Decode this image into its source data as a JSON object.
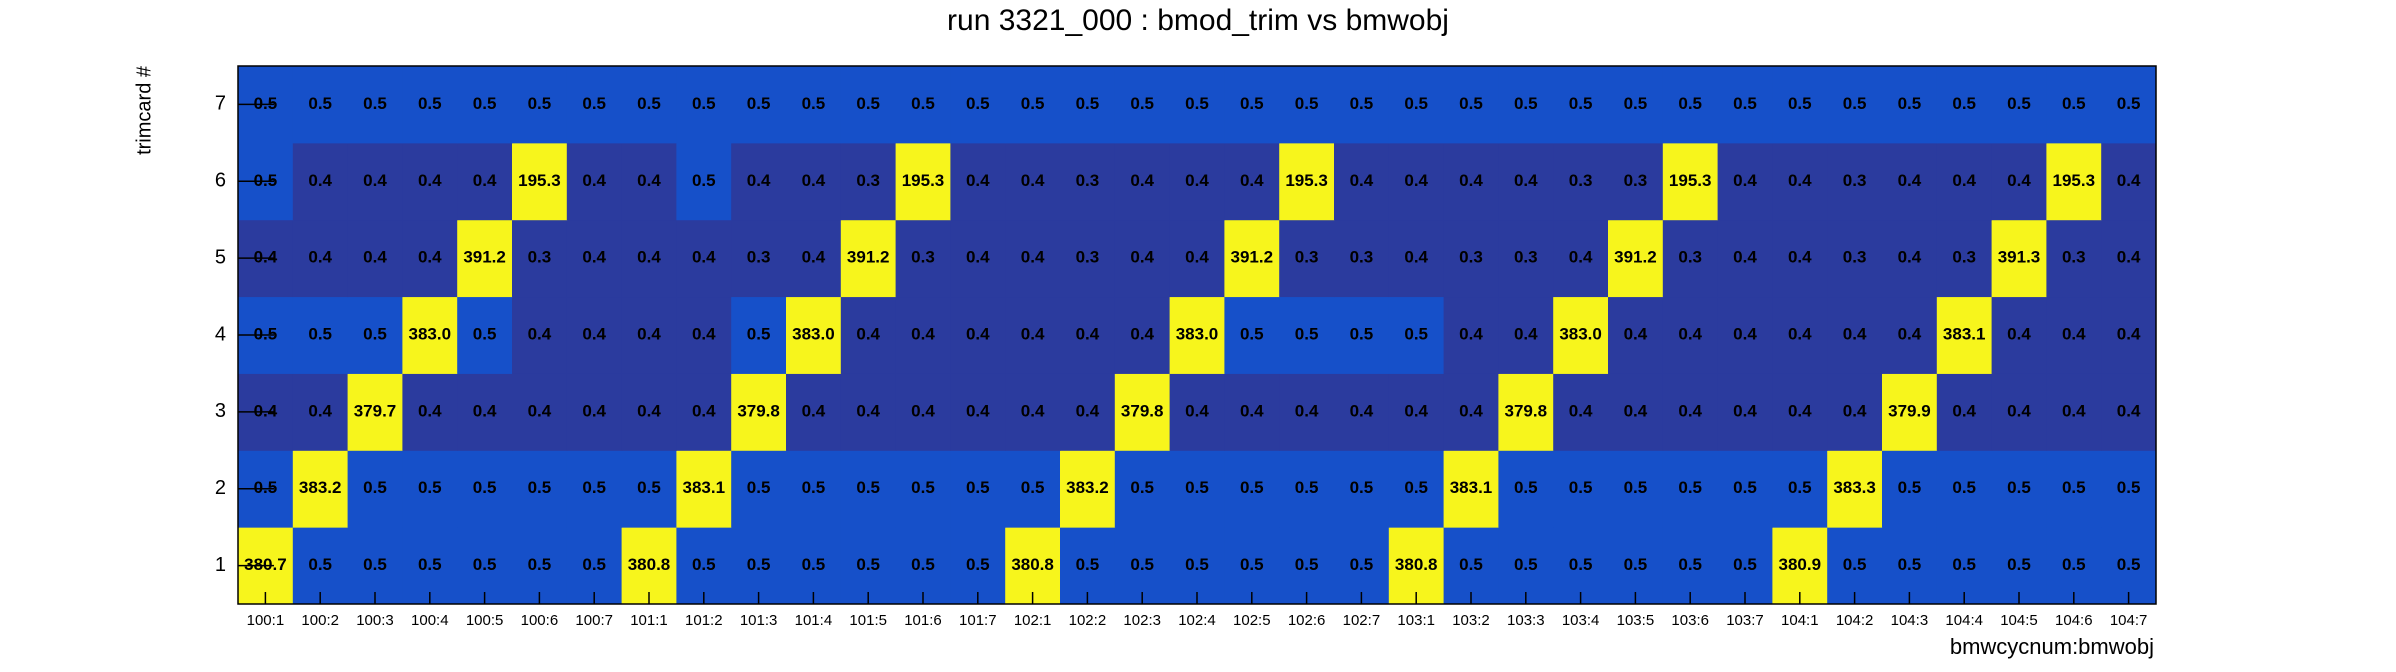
{
  "chart_data": {
    "type": "heatmap",
    "title": "run 3321_000 : bmod_trim vs bmwobj",
    "x_label": "bmwcycnum:bmwobj",
    "y_label": "trimcard #",
    "categories": [
      "100:1",
      "100:2",
      "100:3",
      "100:4",
      "100:5",
      "100:6",
      "100:7",
      "101:1",
      "101:2",
      "101:3",
      "101:4",
      "101:5",
      "101:6",
      "101:7",
      "102:1",
      "102:2",
      "102:3",
      "102:4",
      "102:5",
      "102:6",
      "102:7",
      "103:1",
      "103:2",
      "103:3",
      "103:4",
      "103:5",
      "103:6",
      "103:7",
      "104:1",
      "104:2",
      "104:3",
      "104:4",
      "104:5",
      "104:6",
      "104:7"
    ],
    "y_categories": [
      "1",
      "2",
      "3",
      "4",
      "5",
      "6",
      "7"
    ],
    "values": [
      [
        380.7,
        0.5,
        0.5,
        0.5,
        0.5,
        0.5,
        0.5,
        380.8,
        0.5,
        0.5,
        0.5,
        0.5,
        0.5,
        0.5,
        380.8,
        0.5,
        0.5,
        0.5,
        0.5,
        0.5,
        0.5,
        380.8,
        0.5,
        0.5,
        0.5,
        0.5,
        0.5,
        0.5,
        380.9,
        0.5,
        0.5,
        0.5,
        0.5,
        0.5,
        0.5
      ],
      [
        0.5,
        383.2,
        0.5,
        0.5,
        0.5,
        0.5,
        0.5,
        0.5,
        383.1,
        0.5,
        0.5,
        0.5,
        0.5,
        0.5,
        0.5,
        383.2,
        0.5,
        0.5,
        0.5,
        0.5,
        0.5,
        0.5,
        383.1,
        0.5,
        0.5,
        0.5,
        0.5,
        0.5,
        0.5,
        383.3,
        0.5,
        0.5,
        0.5,
        0.5,
        0.5
      ],
      [
        0.4,
        0.4,
        379.7,
        0.4,
        0.4,
        0.4,
        0.4,
        0.4,
        0.4,
        379.8,
        0.4,
        0.4,
        0.4,
        0.4,
        0.4,
        0.4,
        379.8,
        0.4,
        0.4,
        0.4,
        0.4,
        0.4,
        0.4,
        379.8,
        0.4,
        0.4,
        0.4,
        0.4,
        0.4,
        0.4,
        379.9,
        0.4,
        0.4,
        0.4,
        0.4
      ],
      [
        0.5,
        0.5,
        0.5,
        383.0,
        0.5,
        0.4,
        0.4,
        0.4,
        0.4,
        0.5,
        383.0,
        0.4,
        0.4,
        0.4,
        0.4,
        0.4,
        0.4,
        383.0,
        0.5,
        0.5,
        0.5,
        0.5,
        0.4,
        0.4,
        383.0,
        0.4,
        0.4,
        0.4,
        0.4,
        0.4,
        0.4,
        383.1,
        0.4,
        0.4,
        0.4
      ],
      [
        0.4,
        0.4,
        0.4,
        0.4,
        391.2,
        0.3,
        0.4,
        0.4,
        0.4,
        0.3,
        0.4,
        391.2,
        0.3,
        0.4,
        0.4,
        0.3,
        0.4,
        0.4,
        391.2,
        0.3,
        0.3,
        0.4,
        0.3,
        0.3,
        0.4,
        391.2,
        0.3,
        0.4,
        0.4,
        0.3,
        0.4,
        0.3,
        391.3,
        0.3,
        0.4
      ],
      [
        0.5,
        0.4,
        0.4,
        0.4,
        0.4,
        195.3,
        0.4,
        0.4,
        0.5,
        0.4,
        0.4,
        0.3,
        195.3,
        0.4,
        0.4,
        0.3,
        0.4,
        0.4,
        0.4,
        195.3,
        0.4,
        0.4,
        0.4,
        0.4,
        0.3,
        0.3,
        195.3,
        0.4,
        0.4,
        0.3,
        0.4,
        0.4,
        0.4,
        195.3,
        0.4
      ],
      [
        0.5,
        0.5,
        0.5,
        0.5,
        0.5,
        0.5,
        0.5,
        0.5,
        0.5,
        0.5,
        0.5,
        0.5,
        0.5,
        0.5,
        0.5,
        0.5,
        0.5,
        0.5,
        0.5,
        0.5,
        0.5,
        0.5,
        0.5,
        0.5,
        0.5,
        0.5,
        0.5,
        0.5,
        0.5,
        0.5,
        0.5,
        0.5,
        0.5,
        0.5,
        0.5
      ]
    ],
    "value_labels": [
      [
        "380.7",
        "0.5",
        "0.5",
        "0.5",
        "0.5",
        "0.5",
        "0.5",
        "380.8",
        "0.5",
        "0.5",
        "0.5",
        "0.5",
        "0.5",
        "0.5",
        "380.8",
        "0.5",
        "0.5",
        "0.5",
        "0.5",
        "0.5",
        "0.5",
        "380.8",
        "0.5",
        "0.5",
        "0.5",
        "0.5",
        "0.5",
        "0.5",
        "380.9",
        "0.5",
        "0.5",
        "0.5",
        "0.5",
        "0.5",
        "0.5"
      ],
      [
        "0.5",
        "383.2",
        "0.5",
        "0.5",
        "0.5",
        "0.5",
        "0.5",
        "0.5",
        "383.1",
        "0.5",
        "0.5",
        "0.5",
        "0.5",
        "0.5",
        "0.5",
        "383.2",
        "0.5",
        "0.5",
        "0.5",
        "0.5",
        "0.5",
        "0.5",
        "383.1",
        "0.5",
        "0.5",
        "0.5",
        "0.5",
        "0.5",
        "0.5",
        "383.3",
        "0.5",
        "0.5",
        "0.5",
        "0.5",
        "0.5"
      ],
      [
        "0.4",
        "0.4",
        "379.7",
        "0.4",
        "0.4",
        "0.4",
        "0.4",
        "0.4",
        "0.4",
        "379.8",
        "0.4",
        "0.4",
        "0.4",
        "0.4",
        "0.4",
        "0.4",
        "379.8",
        "0.4",
        "0.4",
        "0.4",
        "0.4",
        "0.4",
        "0.4",
        "379.8",
        "0.4",
        "0.4",
        "0.4",
        "0.4",
        "0.4",
        "0.4",
        "379.9",
        "0.4",
        "0.4",
        "0.4",
        "0.4"
      ],
      [
        "0.5",
        "0.5",
        "0.5",
        "383.0",
        "0.5",
        "0.4",
        "0.4",
        "0.4",
        "0.4",
        "0.5",
        "383.0",
        "0.4",
        "0.4",
        "0.4",
        "0.4",
        "0.4",
        "0.4",
        "383.0",
        "0.5",
        "0.5",
        "0.5",
        "0.5",
        "0.4",
        "0.4",
        "383.0",
        "0.4",
        "0.4",
        "0.4",
        "0.4",
        "0.4",
        "0.4",
        "383.1",
        "0.4",
        "0.4",
        "0.4"
      ],
      [
        "0.4",
        "0.4",
        "0.4",
        "0.4",
        "391.2",
        "0.3",
        "0.4",
        "0.4",
        "0.4",
        "0.3",
        "0.4",
        "391.2",
        "0.3",
        "0.4",
        "0.4",
        "0.3",
        "0.4",
        "0.4",
        "391.2",
        "0.3",
        "0.3",
        "0.4",
        "0.3",
        "0.3",
        "0.4",
        "391.2",
        "0.3",
        "0.4",
        "0.4",
        "0.3",
        "0.4",
        "0.3",
        "391.3",
        "0.3",
        "0.4"
      ],
      [
        "0.5",
        "0.4",
        "0.4",
        "0.4",
        "0.4",
        "195.3",
        "0.4",
        "0.4",
        "0.5",
        "0.4",
        "0.4",
        "0.3",
        "195.3",
        "0.4",
        "0.4",
        "0.3",
        "0.4",
        "0.4",
        "0.4",
        "195.3",
        "0.4",
        "0.4",
        "0.4",
        "0.4",
        "0.3",
        "0.3",
        "195.3",
        "0.4",
        "0.4",
        "0.3",
        "0.4",
        "0.4",
        "0.4",
        "195.3",
        "0.4"
      ],
      [
        "0.5",
        "0.5",
        "0.5",
        "0.5",
        "0.5",
        "0.5",
        "0.5",
        "0.5",
        "0.5",
        "0.5",
        "0.5",
        "0.5",
        "0.5",
        "0.5",
        "0.5",
        "0.5",
        "0.5",
        "0.5",
        "0.5",
        "0.5",
        "0.5",
        "0.5",
        "0.5",
        "0.5",
        "0.5",
        "0.5",
        "0.5",
        "0.5",
        "0.5",
        "0.5",
        "0.5",
        "0.5",
        "0.5",
        "0.5",
        "0.5"
      ]
    ],
    "log_scale": true,
    "palette": [
      "#2b3b9e",
      "#1650c9",
      "#1650c9",
      "#1650c9",
      "#1650c9",
      "#1650c9",
      "#1650c9",
      "#1650c9",
      "#1650c9",
      "#1650c9",
      "#1650c9",
      "#1650c9",
      "#1650c9",
      "#f7f51c",
      "#f7f51c",
      "#f7f51c",
      "#f7f51c",
      "#f7f51c",
      "#f7f51c",
      "#f7f51c"
    ]
  }
}
